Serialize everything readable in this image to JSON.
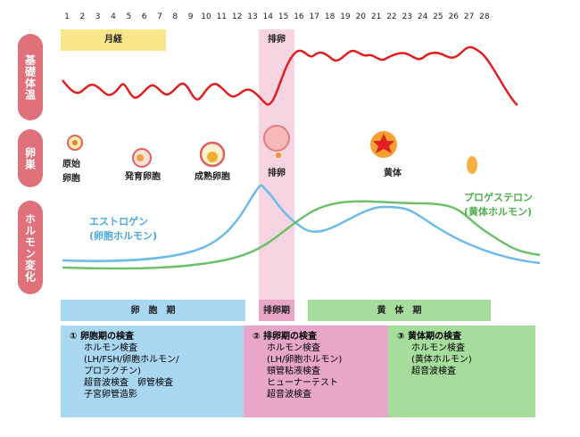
{
  "days": [
    1,
    2,
    3,
    4,
    5,
    6,
    7,
    8,
    9,
    10,
    11,
    12,
    13,
    14,
    15,
    16,
    17,
    18,
    19,
    20,
    21,
    22,
    23,
    24,
    25,
    26,
    27,
    28
  ],
  "row_labels": [
    "基礎体温",
    "卵巣",
    "ホルモン変化"
  ],
  "menstruation": "月経",
  "ovulation": "排卵",
  "ovary_stages": [
    [
      "原始",
      "卵胞"
    ],
    [
      "発育卵胞"
    ],
    [
      "成熟卵胞"
    ],
    [
      "排卵"
    ],
    [
      "黄体"
    ]
  ],
  "hormones": [
    [
      "エストロゲン",
      "(卵胞ホルモン)"
    ],
    [
      "プロゲステロン",
      "(黄体ホルモン)"
    ]
  ],
  "phases": [
    "卵　胞　期",
    "排卵期",
    "黄　体　期"
  ],
  "tests": [
    {
      "title": "① 卵胞期の検査",
      "items": [
        "ホルモン検査",
        "(LH/FSH/卵胞ホルモン/",
        "プロラクチン)",
        "超音波検査　卵管検査",
        "子宮卵管造影"
      ]
    },
    {
      "title": "② 排卵期の検査",
      "items": [
        "ホルモン検査",
        "(LH/卵胞ホルモン)",
        "頸管粘液検査",
        "ヒューナーテスト",
        "超音波検査"
      ]
    },
    {
      "title": "③ 黄体期の検査",
      "items": [
        "ホルモン検査",
        "(黄体ホルモン)",
        "超音波検査"
      ]
    }
  ]
}
